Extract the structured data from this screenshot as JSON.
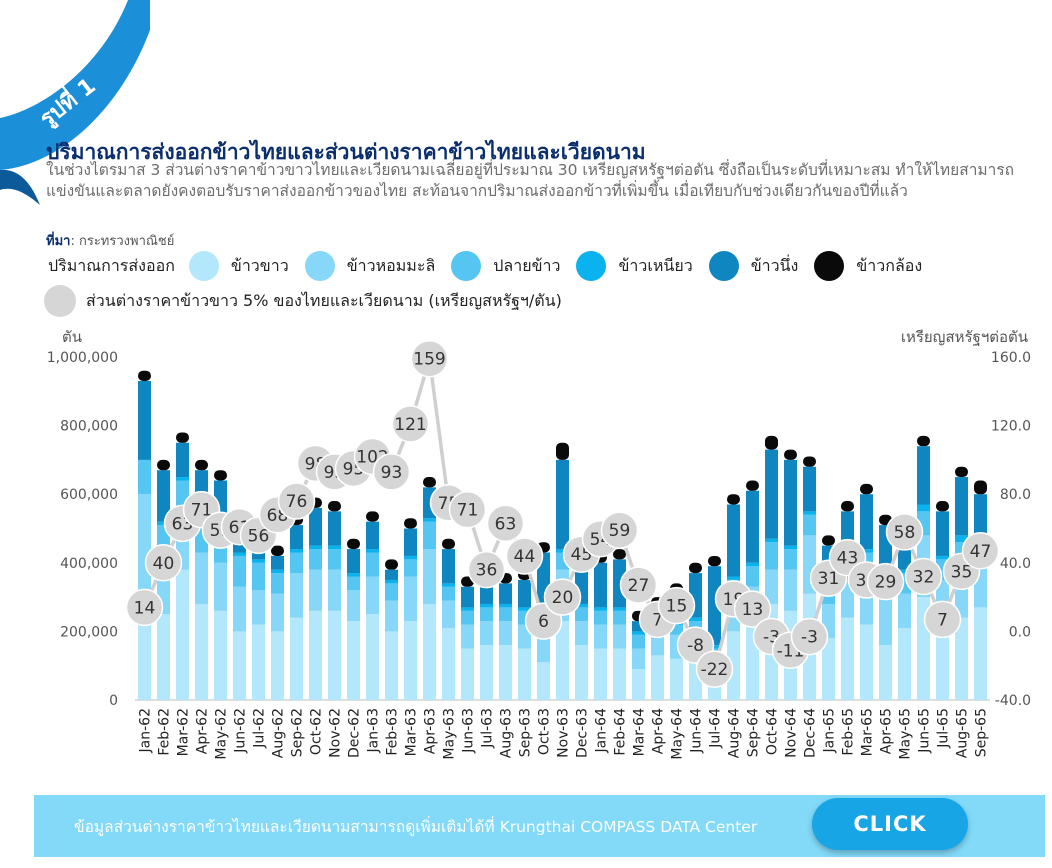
{
  "ribbon": {
    "label": "รูปที่ 1"
  },
  "header": {
    "title": "ปริมาณการส่งออกข้าวไทยและส่วนต่างราคาข้าวไทยและเวียดนาม",
    "description": "ในช่วงไตรมาส 3 ส่วนต่างราคาข้าวขาวไทยและเวียดนามเฉลี่ยอยู่ที่ประมาณ 30 เหรียญสหรัฐฯต่อตัน ซึ่งถือเป็นระดับที่เหมาะสม ทำให้ไทยสามารถแข่งขันและตลาดยังคงตอบรับราคาส่งออกข้าวของไทย สะท้อนจากปริมาณส่งออกข้าวที่เพิ่มขึ้น เมื่อเทียบกับช่วงเดียวกันของปีที่แล้ว",
    "source_label": "ที่มา",
    "source_value": ": กระทรวงพาณิชย์"
  },
  "legend": {
    "title": "ปริมาณการส่งออก",
    "spread_label": "ส่วนต่างราคาข้าวขาว 5% ของไทยและเวียดนาม (เหรียญสหรัฐฯ/ตัน)"
  },
  "banner": {
    "text": "ข้อมูลส่วนต่างราคาข้าวไทยและเวียดนามสามารถดูเพิ่มเติมได้ที่ Krungthai COMPASS DATA Center",
    "button_label": "CLICK"
  },
  "colors": {
    "ribbon": "#1b8fd8",
    "ribbon_dark": "#0c5a99",
    "line": "#cfcfcf",
    "marker": "#d6d6d6",
    "axis_text": "#555555"
  },
  "chart_data": {
    "type": "bar",
    "stacked": true,
    "x": [
      "Jan-62",
      "Feb-62",
      "Mar-62",
      "Apr-62",
      "May-62",
      "Jun-62",
      "Jul-62",
      "Aug-62",
      "Sep-62",
      "Oct-62",
      "Nov-62",
      "Dec-62",
      "Jan-63",
      "Feb-63",
      "Mar-63",
      "Apr-63",
      "May-63",
      "Jun-63",
      "Jul-63",
      "Aug-63",
      "Sep-63",
      "Oct-63",
      "Nov-63",
      "Dec-63",
      "Jan-64",
      "Feb-64",
      "Mar-64",
      "Apr-64",
      "May-64",
      "Jun-64",
      "Jul-64",
      "Aug-64",
      "Sep-64",
      "Oct-64",
      "Nov-64",
      "Dec-64",
      "Jan-65",
      "Feb-65",
      "Mar-65",
      "Apr-65",
      "May-65",
      "Jun-65",
      "Jul-65",
      "Aug-65",
      "Sep-65"
    ],
    "y_left_label": "ตัน",
    "y_right_label": "เหรียญสหรัฐฯต่อตัน",
    "y_left_ticks": [
      "1,000,000",
      "800,000",
      "600,000",
      "400,000",
      "200,000",
      "0"
    ],
    "y_right_ticks": [
      "160.0",
      "120.0",
      "80.0",
      "40.0",
      "0.0",
      "-40.0"
    ],
    "y_left_range": [
      0,
      1000000
    ],
    "y_right_range": [
      -40,
      160
    ],
    "series": [
      {
        "name": "ข้าวขาว",
        "color": "#b3e8fc",
        "values": [
          300000,
          250000,
          380000,
          280000,
          260000,
          200000,
          220000,
          200000,
          240000,
          260000,
          260000,
          230000,
          250000,
          200000,
          230000,
          280000,
          210000,
          150000,
          160000,
          160000,
          150000,
          110000,
          230000,
          160000,
          150000,
          150000,
          90000,
          130000,
          120000,
          130000,
          60000,
          200000,
          230000,
          280000,
          260000,
          310000,
          180000,
          240000,
          220000,
          160000,
          210000,
          300000,
          200000,
          240000,
          270000
        ]
      },
      {
        "name": "ข้าวหอมมะลิ",
        "color": "#87d7f8",
        "values": [
          300000,
          180000,
          160000,
          150000,
          140000,
          130000,
          100000,
          110000,
          130000,
          120000,
          120000,
          90000,
          110000,
          90000,
          130000,
          160000,
          80000,
          70000,
          70000,
          70000,
          70000,
          70000,
          150000,
          70000,
          70000,
          70000,
          60000,
          60000,
          70000,
          70000,
          60000,
          90000,
          100000,
          100000,
          120000,
          170000,
          100000,
          110000,
          150000,
          140000,
          100000,
          180000,
          150000,
          160000,
          130000
        ]
      },
      {
        "name": "ปลายข้าว",
        "color": "#55c6f2",
        "values": [
          100000,
          80000,
          100000,
          90000,
          90000,
          90000,
          80000,
          60000,
          60000,
          60000,
          60000,
          40000,
          70000,
          50000,
          50000,
          80000,
          40000,
          40000,
          40000,
          40000,
          40000,
          40000,
          50000,
          40000,
          40000,
          40000,
          40000,
          30000,
          30000,
          30000,
          30000,
          60000,
          60000,
          80000,
          60000,
          60000,
          60000,
          60000,
          60000,
          60000,
          60000,
          70000,
          60000,
          60000,
          50000
        ]
      },
      {
        "name": "ข้าวเหนียว",
        "color": "#0ab2ee",
        "values": [
          0,
          10000,
          10000,
          10000,
          10000,
          10000,
          10000,
          10000,
          10000,
          10000,
          10000,
          10000,
          10000,
          10000,
          10000,
          10000,
          10000,
          10000,
          10000,
          10000,
          10000,
          10000,
          10000,
          10000,
          10000,
          10000,
          10000,
          10000,
          10000,
          10000,
          10000,
          10000,
          10000,
          10000,
          10000,
          10000,
          10000,
          10000,
          10000,
          10000,
          10000,
          20000,
          10000,
          20000,
          10000
        ]
      },
      {
        "name": "ข้าวนึ่ง",
        "color": "#0f86c0",
        "values": [
          230000,
          150000,
          100000,
          140000,
          140000,
          60000,
          90000,
          40000,
          70000,
          110000,
          100000,
          70000,
          80000,
          30000,
          80000,
          90000,
          100000,
          60000,
          60000,
          60000,
          80000,
          200000,
          260000,
          160000,
          130000,
          140000,
          30000,
          40000,
          80000,
          130000,
          230000,
          210000,
          210000,
          260000,
          250000,
          130000,
          100000,
          130000,
          160000,
          140000,
          110000,
          170000,
          130000,
          170000,
          140000
        ]
      },
      {
        "name": "ข้าวกล้อง",
        "color": "#0a0a0a",
        "values": [
          30000,
          30000,
          30000,
          30000,
          30000,
          30000,
          30000,
          30000,
          30000,
          30000,
          30000,
          30000,
          30000,
          30000,
          30000,
          30000,
          30000,
          30000,
          30000,
          30000,
          30000,
          30000,
          50000,
          30000,
          30000,
          30000,
          30000,
          30000,
          30000,
          30000,
          30000,
          30000,
          30000,
          40000,
          30000,
          30000,
          30000,
          30000,
          30000,
          30000,
          30000,
          30000,
          30000,
          30000,
          40000
        ]
      }
    ],
    "line": {
      "name": "ส่วนต่างราคาข้าวขาว 5% ของไทยและเวียดนาม (เหรียญสหรัฐฯ/ตัน)",
      "axis": "right",
      "values": [
        14,
        40,
        63,
        71,
        59,
        61,
        56,
        68,
        76,
        98,
        93,
        95,
        102,
        93,
        121,
        159,
        75,
        71,
        36,
        63,
        44,
        6,
        20,
        45,
        54,
        59,
        27,
        7,
        15,
        -8,
        -22,
        19,
        13,
        -3,
        -11,
        -3,
        31,
        43,
        30,
        29,
        58,
        32,
        7,
        35,
        47
      ],
      "labels": [
        "14",
        "40",
        "63",
        "71",
        "59",
        "61",
        "56",
        "68",
        "76",
        "98",
        "93",
        "95",
        "102",
        "93",
        "121",
        "159",
        "75",
        "71",
        "36",
        "63",
        "44",
        "6",
        "20",
        "45",
        "54",
        "59",
        "27",
        "7",
        "15",
        "-8",
        "-22",
        "19",
        "13",
        "-3",
        "-11",
        "-3",
        "31",
        "43",
        "30",
        "29",
        "58",
        "32",
        "7",
        "35",
        "47"
      ]
    },
    "legend_position": "top",
    "grid": false
  }
}
